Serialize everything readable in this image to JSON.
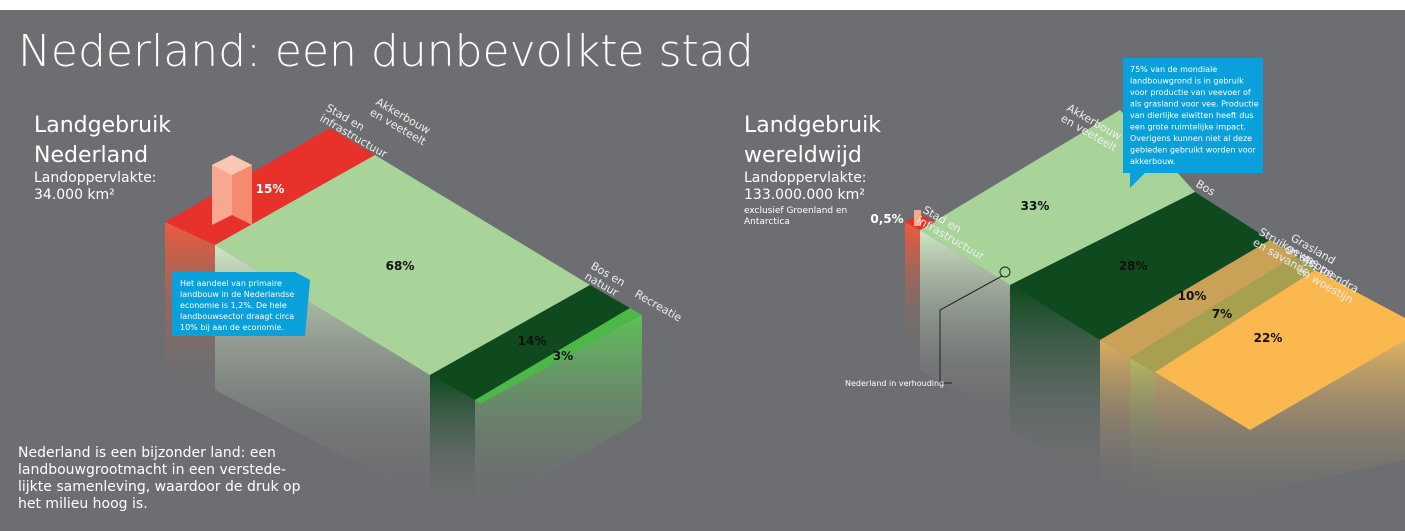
{
  "title": "Nederland: een dunbevolkte stad",
  "left": {
    "heading": [
      "Landgebruik",
      "Nederland"
    ],
    "area_label": "Landoppervlakte:",
    "area_value": "34.000 km²",
    "segments": [
      {
        "label": [
          "Stad en",
          "infrastructuur"
        ],
        "value": "15%"
      },
      {
        "label": [
          "Akkerbouw",
          "en veeteelt"
        ],
        "value": "68%"
      },
      {
        "label": [
          "Bos en",
          "natuur"
        ],
        "value": "14%"
      },
      {
        "label": [
          "Recreatie"
        ],
        "value": "3%"
      }
    ],
    "note": [
      "Het aandeel van primaire",
      "landbouw in de Nederlandse",
      "economie is 1,2%. De hele",
      "landbouwsector draagt circa",
      "10% bij aan de economie."
    ],
    "description": [
      "Nederland is een bijzonder land: een",
      "landbouwgrootmacht in een verstede-",
      "lijkte samenleving, waardoor de druk op",
      "het milieu hoog is."
    ]
  },
  "right": {
    "heading": [
      "Landgebruik",
      "wereldwijd"
    ],
    "area_label": "Landoppervlakte:",
    "area_value": "133.000.000 km²",
    "area_note": [
      "exclusief Groenland en",
      "Antarctica"
    ],
    "segments": [
      {
        "label": [
          "Stad en",
          "infrastructuur"
        ],
        "value": "0,5%"
      },
      {
        "label": [
          "Akkerbouw",
          "en veeteelt"
        ],
        "value": "33%"
      },
      {
        "label": [
          "Bos"
        ],
        "value": "28%"
      },
      {
        "label": [
          "Grasland",
          "en steppe"
        ],
        "value": "10%"
      },
      {
        "label": [
          "Struikgewas",
          "en savanne"
        ],
        "value": "7%"
      },
      {
        "label": [
          "IJs, toendra",
          "en woestijn"
        ],
        "value": "22%"
      }
    ],
    "note": [
      "75% van de mondiale",
      "landbouwgrond is in gebruik",
      "voor productie van veevoer of",
      "als grasland voor vee. Productie",
      "van dierlijke eiwitten heeft dus",
      "een grote ruimtelijke impact.",
      "Overigens kunnen niet al deze",
      "gebieden gebruikt worden voor",
      "akkerbouw."
    ],
    "scale_note": "Nederland in verhouding"
  }
}
